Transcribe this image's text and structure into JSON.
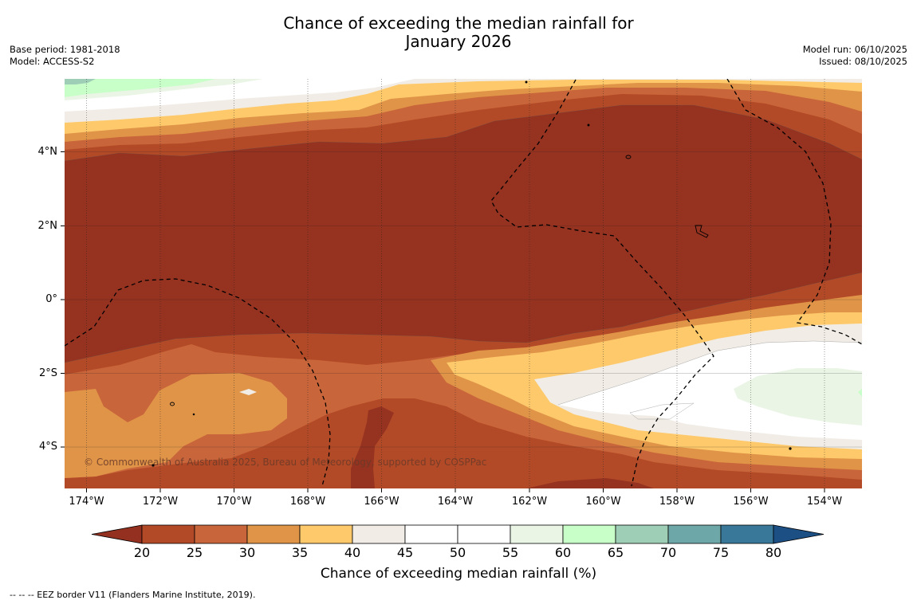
{
  "title": {
    "line1": "Chance of exceeding the median rainfall for",
    "line2": "January 2026"
  },
  "meta_left": {
    "base_period": "Base period: 1981-2018",
    "model": "Model: ACCESS-S2"
  },
  "meta_right": {
    "model_run": "Model run: 06/10/2025",
    "issued": "Issued: 08/10/2025"
  },
  "map": {
    "longitude_labels": [
      "174°W",
      "172°W",
      "170°W",
      "168°W",
      "166°W",
      "164°W",
      "162°W",
      "160°W",
      "158°W",
      "156°W",
      "154°W"
    ],
    "latitude_labels": [
      "4°N",
      "2°N",
      "0°",
      "2°S",
      "4°S"
    ],
    "copyright": "© Commonwealth of Australia 2025, Bureau of Meteorology, supported by COSPPac"
  },
  "colorbar": {
    "ticks": [
      "20",
      "25",
      "30",
      "35",
      "40",
      "45",
      "50",
      "55",
      "60",
      "65",
      "70",
      "75",
      "80"
    ],
    "colors": [
      "#b34a27",
      "#c9653a",
      "#e09448",
      "#fec96a",
      "#f1ede6",
      "#ffffff",
      "#ffffff",
      "#eaf5e6",
      "#c8fec8",
      "#9ecfb6",
      "#6ea7a8",
      "#3a789a"
    ],
    "under_color": "#943020",
    "over_color": "#1c4f84",
    "label": "Chance of exceeding median rainfall (%)"
  },
  "legend": {
    "footnote": "--  --  -- EEZ border V11 (Flanders Marine Institute, 2019)."
  }
}
